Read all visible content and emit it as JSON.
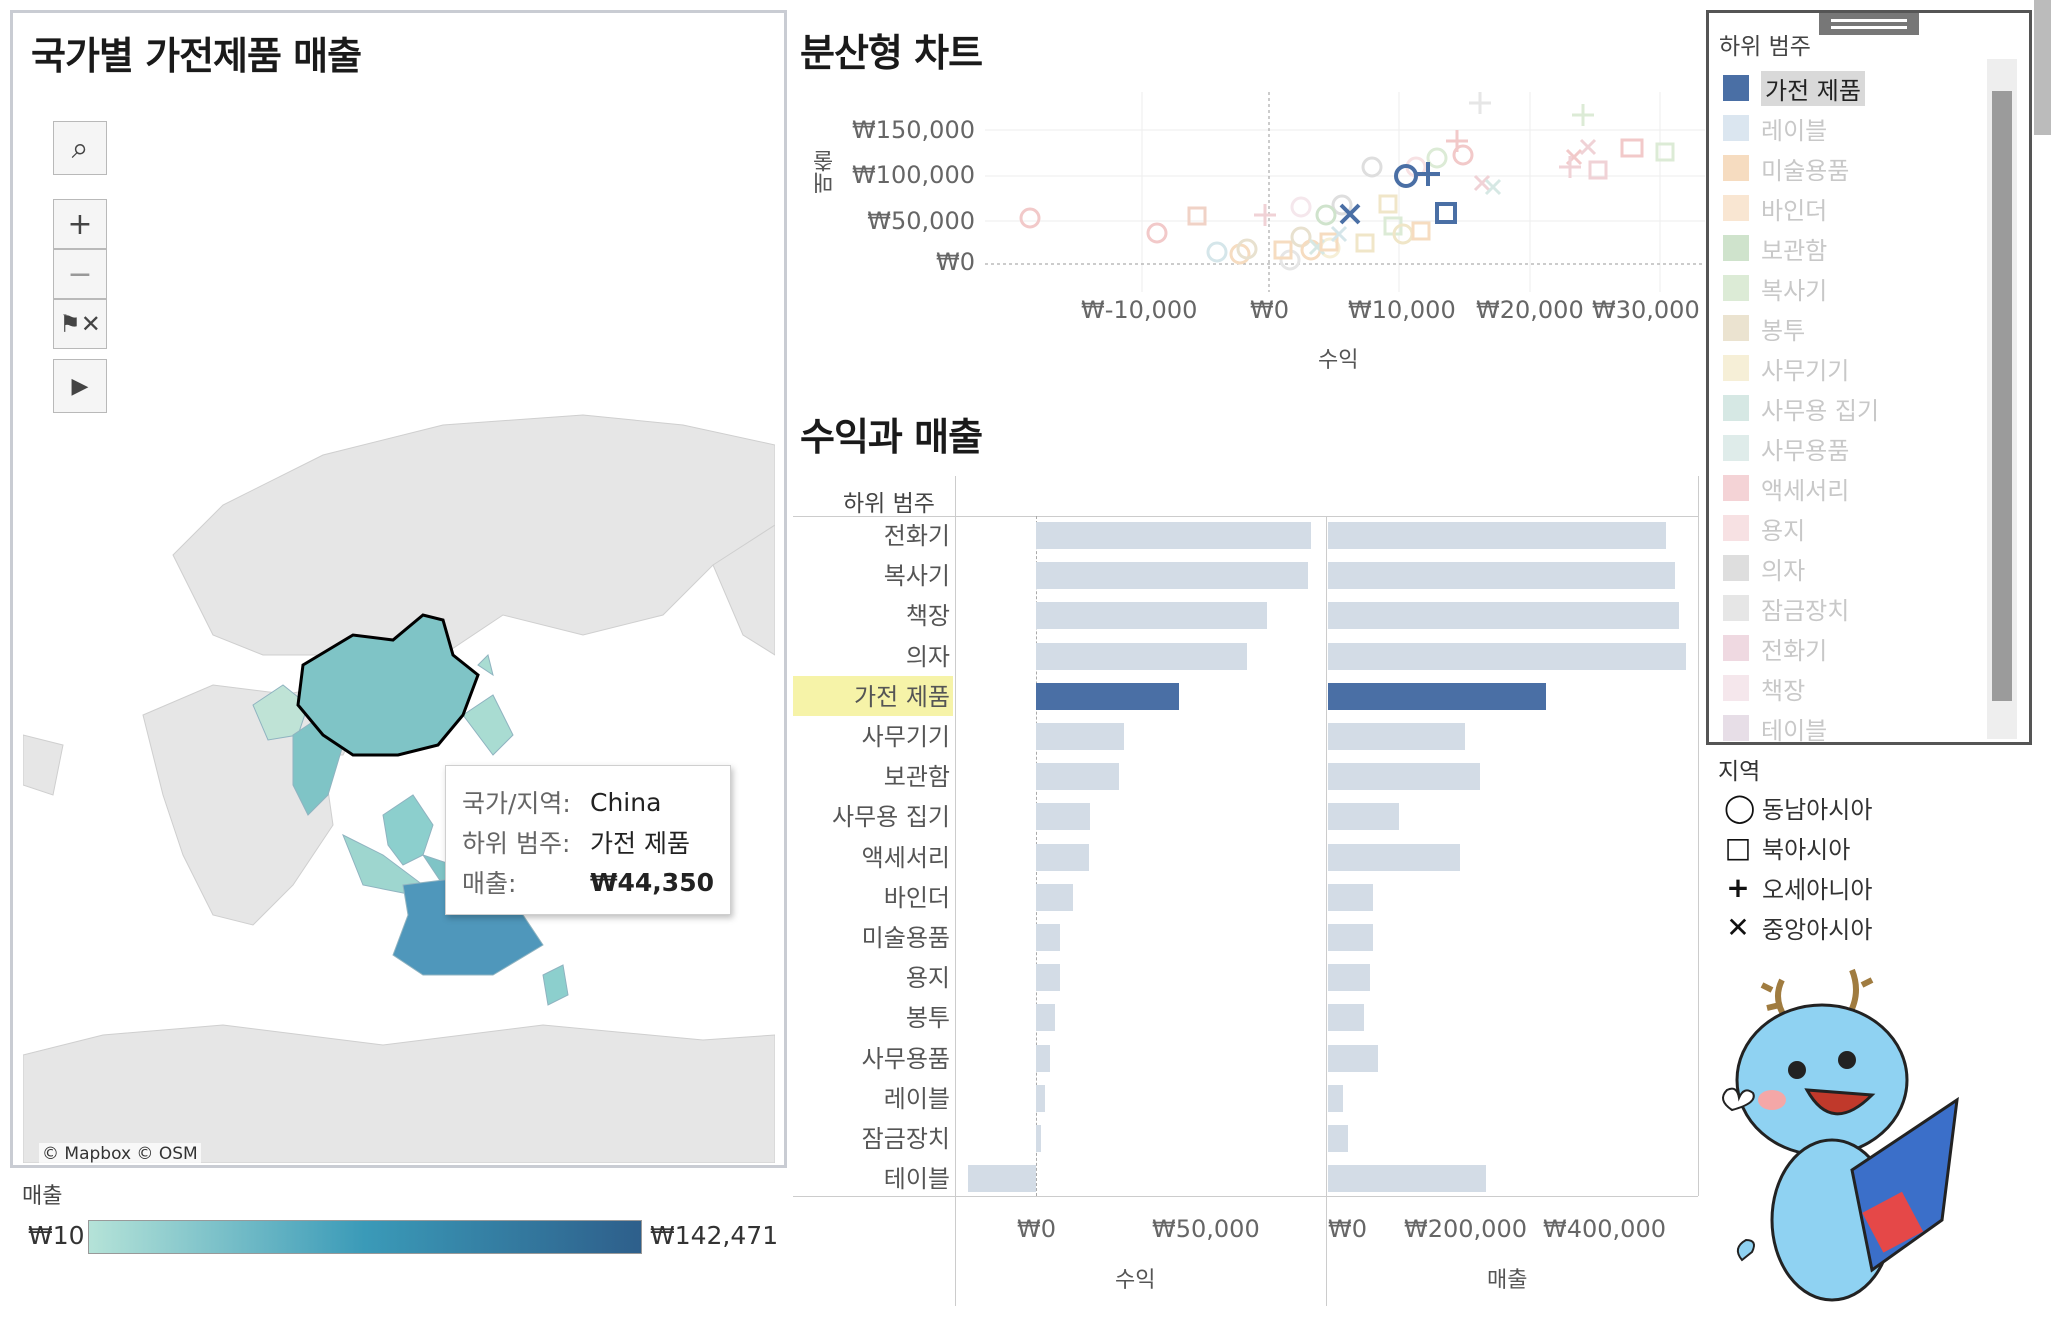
{
  "map": {
    "title": "국가별 가전제품 매출",
    "attribution": "© Mapbox © OSM",
    "tooltip": {
      "country_label": "국가/지역:",
      "country_value": "China",
      "subcat_label": "하위 범주:",
      "subcat_value": "가전 제품",
      "sales_label": "매출:",
      "sales_value": "₩44,350"
    },
    "controls": [
      "search-icon",
      "zoom-in-icon",
      "zoom-out-icon",
      "unpin-icon",
      "expand-icon"
    ],
    "legend": {
      "title": "매출",
      "min": "₩10",
      "max": "₩142,471",
      "color_start": "#b5e3d8",
      "color_end": "#2e5f8b"
    }
  },
  "scatter": {
    "title": "분산형 차트",
    "xlabel": "수익",
    "ylabel": "매출",
    "x_ticks": [
      "₩-10,000",
      "₩0",
      "₩10,000",
      "₩20,000",
      "₩30,000"
    ],
    "y_ticks": [
      "₩150,000",
      "₩100,000",
      "₩50,000",
      "₩0"
    ],
    "highlight_color": "#4a6fa5"
  },
  "bars": {
    "title": "수익과 매출",
    "header": "하위 범주",
    "profit_label": "수익",
    "sales_label": "매출",
    "profit_ticks": [
      "₩0",
      "₩50,000"
    ],
    "sales_ticks": [
      "₩0",
      "₩200,000",
      "₩400,000"
    ]
  },
  "chart_data": {
    "type": "bar",
    "categories": [
      "전화기",
      "복사기",
      "책장",
      "의자",
      "가전 제품",
      "사무기기",
      "보관함",
      "사무용 집기",
      "액세서리",
      "바인더",
      "미술용품",
      "용지",
      "봉투",
      "사무용품",
      "레이블",
      "잠금장치",
      "테이블"
    ],
    "series": [
      {
        "name": "수익",
        "values": [
          81000,
          80000,
          68000,
          62000,
          42000,
          26000,
          24500,
          16000,
          15500,
          11000,
          7000,
          7000,
          5500,
          4000,
          2500,
          1500,
          -20000
        ]
      },
      {
        "name": "매출",
        "values": [
          455000,
          468000,
          473000,
          482000,
          294000,
          185000,
          205000,
          95000,
          178000,
          60000,
          60000,
          57000,
          48000,
          68000,
          20000,
          27000,
          213000
        ]
      }
    ],
    "highlight": "가전 제품"
  },
  "filter": {
    "title": "하위 범주",
    "items": [
      {
        "label": "가전 제품",
        "color": "#4a6fa5",
        "selected": true
      },
      {
        "label": "레이블",
        "color": "#dbe6f0",
        "selected": false
      },
      {
        "label": "미술용품",
        "color": "#f6dcc0",
        "selected": false
      },
      {
        "label": "바인더",
        "color": "#f9e6d2",
        "selected": false
      },
      {
        "label": "보관함",
        "color": "#cfe3cc",
        "selected": false
      },
      {
        "label": "복사기",
        "color": "#dcebd6",
        "selected": false
      },
      {
        "label": "봉투",
        "color": "#ebe3d0",
        "selected": false
      },
      {
        "label": "사무기기",
        "color": "#f6efd7",
        "selected": false
      },
      {
        "label": "사무용 집기",
        "color": "#d6e8e4",
        "selected": false
      },
      {
        "label": "사무용품",
        "color": "#dfecea",
        "selected": false
      },
      {
        "label": "액세서리",
        "color": "#f4d3d6",
        "selected": false
      },
      {
        "label": "용지",
        "color": "#f7e1e3",
        "selected": false
      },
      {
        "label": "의자",
        "color": "#dedede",
        "selected": false
      },
      {
        "label": "잠금장치",
        "color": "#e6e6e6",
        "selected": false
      },
      {
        "label": "전화기",
        "color": "#efd9e1",
        "selected": false
      },
      {
        "label": "책장",
        "color": "#f5e7ec",
        "selected": false
      },
      {
        "label": "테이블",
        "color": "#e7dee7",
        "selected": false
      }
    ]
  },
  "region": {
    "title": "지역",
    "items": [
      {
        "label": "동남아시아",
        "icon": "circle-icon"
      },
      {
        "label": "북아시아",
        "icon": "square-icon"
      },
      {
        "label": "오세아니아",
        "icon": "plus-icon"
      },
      {
        "label": "중앙아시아",
        "icon": "x-icon"
      }
    ]
  }
}
